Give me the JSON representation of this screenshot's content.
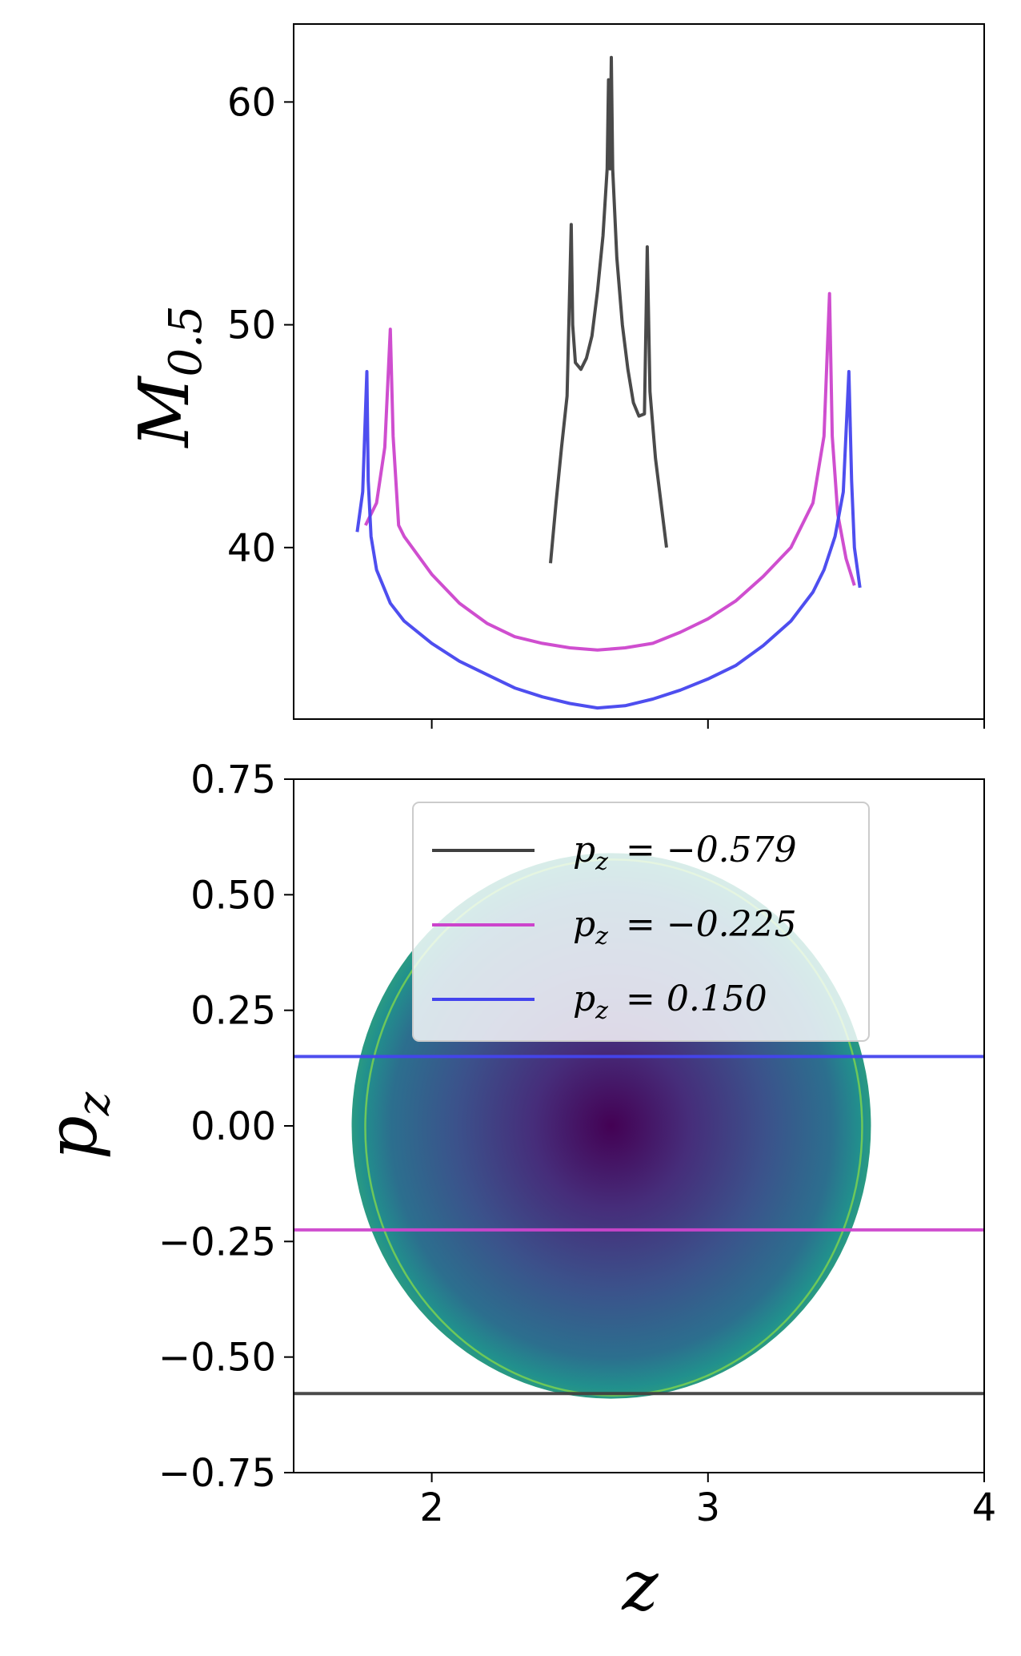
{
  "chart_data": [
    {
      "type": "line",
      "panel": "top",
      "xlabel": "",
      "ylabel": "M",
      "ylabel_sub": "0.5",
      "xlim": [
        1.5,
        4.0
      ],
      "ylim": [
        32.3,
        63.5
      ],
      "yticks": [
        40,
        50,
        60
      ],
      "ytick_labels": [
        "40",
        "50",
        "60"
      ],
      "xticks": [
        2,
        3,
        4
      ],
      "grid": false,
      "series": [
        {
          "color": "#404040",
          "points": [
            [
              2.43,
              39.3
            ],
            [
              2.45,
              42.0
            ],
            [
              2.47,
              44.5
            ],
            [
              2.49,
              46.8
            ],
            [
              2.505,
              54.5
            ],
            [
              2.51,
              50.0
            ],
            [
              2.52,
              48.3
            ],
            [
              2.54,
              48.0
            ],
            [
              2.56,
              48.5
            ],
            [
              2.58,
              49.5
            ],
            [
              2.6,
              51.5
            ],
            [
              2.62,
              54.0
            ],
            [
              2.635,
              57.0
            ],
            [
              2.64,
              61.0
            ],
            [
              2.645,
              57.0
            ],
            [
              2.65,
              62.0
            ],
            [
              2.655,
              57.0
            ],
            [
              2.67,
              53.0
            ],
            [
              2.69,
              50.0
            ],
            [
              2.71,
              48.0
            ],
            [
              2.73,
              46.5
            ],
            [
              2.75,
              45.9
            ],
            [
              2.77,
              46.0
            ],
            [
              2.78,
              53.5
            ],
            [
              2.79,
              47.0
            ],
            [
              2.81,
              44.0
            ],
            [
              2.83,
              42.0
            ],
            [
              2.85,
              40.0
            ]
          ]
        },
        {
          "color": "#cc44cc",
          "points": [
            [
              1.76,
              41.0
            ],
            [
              1.8,
              42.0
            ],
            [
              1.83,
              44.5
            ],
            [
              1.85,
              49.8
            ],
            [
              1.86,
              45.0
            ],
            [
              1.88,
              41.0
            ],
            [
              1.9,
              40.5
            ],
            [
              2.0,
              38.8
            ],
            [
              2.1,
              37.5
            ],
            [
              2.2,
              36.6
            ],
            [
              2.3,
              36.0
            ],
            [
              2.4,
              35.7
            ],
            [
              2.5,
              35.5
            ],
            [
              2.6,
              35.4
            ],
            [
              2.7,
              35.5
            ],
            [
              2.8,
              35.7
            ],
            [
              2.9,
              36.2
            ],
            [
              3.0,
              36.8
            ],
            [
              3.1,
              37.6
            ],
            [
              3.2,
              38.7
            ],
            [
              3.3,
              40.0
            ],
            [
              3.38,
              42.0
            ],
            [
              3.42,
              45.0
            ],
            [
              3.44,
              51.4
            ],
            [
              3.45,
              45.0
            ],
            [
              3.47,
              41.5
            ],
            [
              3.5,
              39.5
            ],
            [
              3.53,
              38.3
            ]
          ]
        },
        {
          "color": "#4444ee",
          "points": [
            [
              1.73,
              40.7
            ],
            [
              1.75,
              42.5
            ],
            [
              1.765,
              47.9
            ],
            [
              1.77,
              43.0
            ],
            [
              1.78,
              40.5
            ],
            [
              1.8,
              39.0
            ],
            [
              1.85,
              37.5
            ],
            [
              1.9,
              36.7
            ],
            [
              2.0,
              35.7
            ],
            [
              2.1,
              34.9
            ],
            [
              2.2,
              34.3
            ],
            [
              2.3,
              33.7
            ],
            [
              2.4,
              33.3
            ],
            [
              2.5,
              33.0
            ],
            [
              2.6,
              32.8
            ],
            [
              2.7,
              32.9
            ],
            [
              2.8,
              33.2
            ],
            [
              2.9,
              33.6
            ],
            [
              3.0,
              34.1
            ],
            [
              3.1,
              34.7
            ],
            [
              3.2,
              35.6
            ],
            [
              3.3,
              36.7
            ],
            [
              3.38,
              38.0
            ],
            [
              3.42,
              39.0
            ],
            [
              3.46,
              40.5
            ],
            [
              3.49,
              42.5
            ],
            [
              3.51,
              47.9
            ],
            [
              3.52,
              43.0
            ],
            [
              3.53,
              40.0
            ],
            [
              3.55,
              38.2
            ]
          ]
        }
      ]
    },
    {
      "type": "heatmap",
      "panel": "bottom",
      "xlabel": "z",
      "ylabel": "p",
      "ylabel_sub": "z",
      "xlim": [
        1.5,
        4.0
      ],
      "ylim": [
        -0.75,
        0.75
      ],
      "xticks": [
        2,
        3,
        4
      ],
      "xtick_labels": [
        "2",
        "3",
        "4"
      ],
      "yticks": [
        -0.75,
        -0.5,
        -0.25,
        0.0,
        0.25,
        0.5,
        0.75
      ],
      "ytick_labels": [
        "−0.75",
        "−0.50",
        "−0.25",
        "0.00",
        "0.25",
        "0.50",
        "0.75"
      ],
      "grid": false,
      "disk": {
        "center_z": 2.65,
        "center_pz": 0.0,
        "radius_z": 0.94,
        "radius_pz": 0.59
      },
      "colormap": "viridis",
      "hlines": [
        {
          "pz": -0.579,
          "color": "#404040"
        },
        {
          "pz": -0.225,
          "color": "#cc44cc"
        },
        {
          "pz": 0.15,
          "color": "#4444ee"
        }
      ],
      "legend": {
        "placement": "upper-center",
        "entries": [
          {
            "label": "p",
            "sub": "z",
            "value": "= −0.579",
            "color": "#404040"
          },
          {
            "label": "p",
            "sub": "z",
            "value": "= −0.225",
            "color": "#cc44cc"
          },
          {
            "label": "p",
            "sub": "z",
            "value": "= 0.150",
            "color": "#4444ee"
          }
        ]
      }
    }
  ]
}
